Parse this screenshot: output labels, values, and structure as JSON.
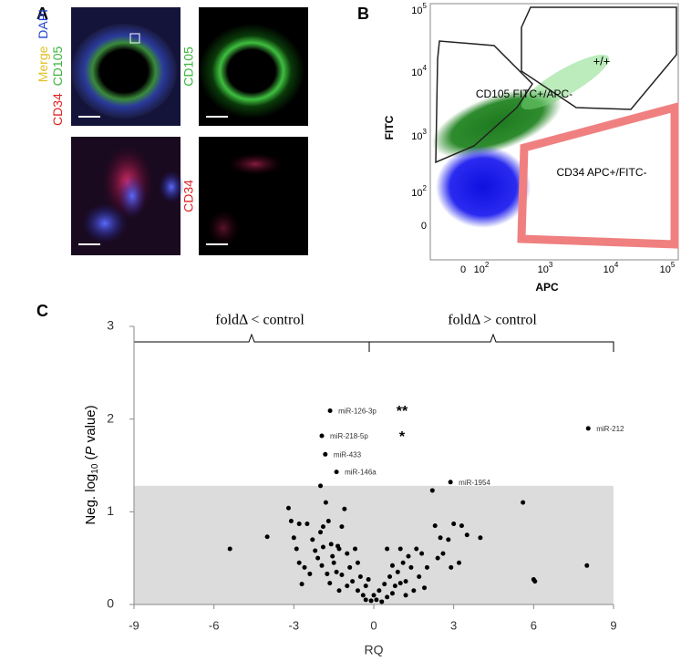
{
  "panel_a": {
    "letter": "A",
    "label_top_left": {
      "cd34": "CD34",
      "cd105": "CD105",
      "merge": "Merge",
      "dapi": "DAPI"
    },
    "label_top_right": "CD105",
    "label_bottom_right": "CD34"
  },
  "panel_b": {
    "letter": "B",
    "ylabel": "FITC",
    "xlabel": "APC",
    "yticks": [
      {
        "base": "10",
        "exp": "5"
      },
      {
        "base": "10",
        "exp": "4"
      },
      {
        "base": "10",
        "exp": "3"
      },
      {
        "base": "10",
        "exp": "2"
      },
      "0"
    ],
    "xticks": [
      "0",
      {
        "base": "10",
        "exp": "2"
      },
      {
        "base": "10",
        "exp": "3"
      },
      {
        "base": "10",
        "exp": "4"
      },
      {
        "base": "10",
        "exp": "5"
      }
    ],
    "gates": [
      "+/+",
      "CD105 FITC+/APC-",
      "CD34 APC+/FITC-"
    ]
  },
  "panel_c": {
    "letter": "C",
    "bracket_left": "foldΔ < control",
    "bracket_right": "foldΔ > control",
    "annotations": [
      "**",
      "*"
    ],
    "chart_data": {
      "type": "scatter",
      "xlabel": "RQ",
      "ylabel": {
        "prefix": "Neg. log",
        "sub": "10",
        "open": " (",
        "italic": "P",
        "suffix": " value)"
      },
      "xlim": [
        -9,
        9
      ],
      "ylim": [
        0,
        3
      ],
      "xticks": [
        -9,
        -6,
        -3,
        0,
        3,
        6,
        9
      ],
      "yticks": [
        0,
        1,
        2,
        3
      ],
      "shade_below": 1.28,
      "color": "#000000",
      "shade_color": "#dcdcdc",
      "labeled_points": [
        {
          "label": "miR-126-3p",
          "x": -1.64,
          "y": 2.09
        },
        {
          "label": "miR-218-5p",
          "x": -1.95,
          "y": 1.82
        },
        {
          "label": "miR-433",
          "x": -1.82,
          "y": 1.62
        },
        {
          "label": "miR-146a",
          "x": -1.4,
          "y": 1.43
        },
        {
          "label": "miR-1954",
          "x": 2.88,
          "y": 1.32
        },
        {
          "label": "miR-212",
          "x": 8.05,
          "y": 1.9
        }
      ],
      "x": [
        -5.4,
        -4.0,
        -3.2,
        -3.0,
        -2.9,
        -2.8,
        -2.5,
        -2.3,
        -2.2,
        -2.0,
        -1.9,
        -1.8,
        -1.7,
        -1.6,
        -1.5,
        -1.4,
        -1.3,
        -1.2,
        -1.1,
        -1.0,
        -0.9,
        -0.8,
        -0.7,
        -0.6,
        -0.5,
        -0.4,
        -0.3,
        -0.2,
        -0.1,
        0.0,
        -2.6,
        -2.4,
        -2.1,
        -1.95,
        -1.75,
        -1.65,
        -1.55,
        -1.35,
        -1.2,
        -2.7,
        -3.1,
        -2.8,
        -1.0,
        -0.6,
        -0.3,
        -1.9,
        -2.0,
        -1.3,
        0.1,
        0.2,
        0.3,
        0.4,
        0.5,
        0.6,
        0.7,
        0.8,
        0.9,
        1.0,
        1.1,
        1.2,
        1.3,
        1.4,
        1.5,
        1.6,
        1.7,
        1.8,
        1.9,
        2.0,
        2.2,
        2.3,
        2.5,
        2.6,
        2.8,
        2.9,
        3.0,
        3.2,
        3.3,
        3.5,
        4.0,
        5.6,
        6.0,
        6.05,
        8.0,
        0.5,
        0.7,
        1.0,
        1.2,
        2.4
      ],
      "y": [
        0.6,
        0.73,
        1.04,
        0.72,
        0.6,
        0.87,
        0.87,
        0.7,
        0.58,
        1.28,
        0.84,
        1.1,
        0.9,
        0.65,
        0.45,
        0.35,
        0.6,
        0.84,
        1.03,
        0.55,
        0.4,
        0.25,
        0.6,
        0.15,
        0.3,
        0.1,
        0.05,
        0.27,
        0.04,
        0.1,
        0.4,
        0.33,
        0.5,
        0.42,
        0.33,
        0.23,
        0.52,
        0.63,
        0.32,
        0.22,
        0.9,
        0.45,
        0.2,
        0.45,
        0.2,
        0.62,
        0.78,
        0.15,
        0.05,
        0.15,
        0.03,
        0.22,
        0.08,
        0.3,
        0.12,
        0.2,
        0.35,
        0.6,
        0.45,
        0.25,
        0.52,
        0.4,
        0.15,
        0.6,
        0.3,
        0.55,
        0.18,
        0.4,
        1.23,
        0.85,
        0.72,
        0.55,
        0.7,
        0.4,
        0.87,
        0.45,
        0.85,
        0.75,
        0.72,
        1.1,
        0.27,
        0.25,
        0.42,
        0.6,
        0.42,
        0.23,
        0.1,
        0.5
      ]
    }
  }
}
